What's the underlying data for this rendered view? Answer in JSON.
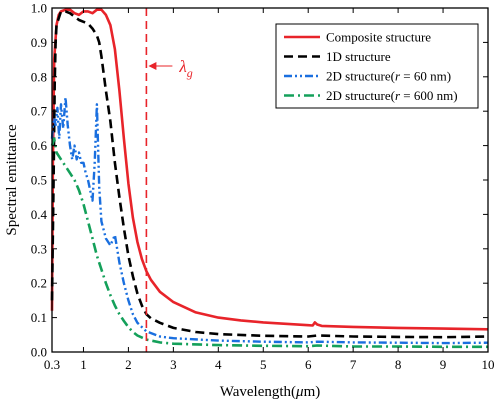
{
  "chart_data": {
    "type": "line",
    "xlabel_prefix": "Wavelength(",
    "xlabel_mu": "μ",
    "xlabel_suffix": "m)",
    "ylabel": "Spectral emittance",
    "xlim": [
      0.3,
      10
    ],
    "ylim": [
      0.0,
      1.0
    ],
    "x_ticks": [
      0.3,
      1,
      2,
      3,
      4,
      5,
      6,
      7,
      8,
      9,
      10
    ],
    "x_tick_labels": [
      "0.3",
      "1",
      "2",
      "3",
      "4",
      "5",
      "6",
      "7",
      "8",
      "9",
      "10"
    ],
    "y_ticks": [
      0.0,
      0.1,
      0.2,
      0.3,
      0.4,
      0.5,
      0.6,
      0.7,
      0.8,
      0.9,
      1.0
    ],
    "y_tick_labels": [
      "0.0",
      "0.1",
      "0.2",
      "0.3",
      "0.4",
      "0.5",
      "0.6",
      "0.7",
      "0.8",
      "0.9",
      "1.0"
    ],
    "grid": false,
    "legend_position": "top-right",
    "annotation": {
      "symbol": "λ",
      "subscript": "g",
      "x": 2.4,
      "line_color": "#e8242a"
    },
    "series": [
      {
        "name": "Composite structure",
        "color": "#e8242a",
        "dash": "solid",
        "points": [
          [
            0.3,
            0.12
          ],
          [
            0.32,
            0.55
          ],
          [
            0.35,
            0.85
          ],
          [
            0.4,
            0.95
          ],
          [
            0.45,
            0.98
          ],
          [
            0.5,
            0.99
          ],
          [
            0.6,
            0.995
          ],
          [
            0.7,
            0.995
          ],
          [
            0.8,
            0.985
          ],
          [
            0.9,
            0.98
          ],
          [
            1.0,
            0.99
          ],
          [
            1.1,
            0.99
          ],
          [
            1.2,
            0.985
          ],
          [
            1.3,
            0.995
          ],
          [
            1.4,
            0.995
          ],
          [
            1.5,
            0.98
          ],
          [
            1.6,
            0.95
          ],
          [
            1.7,
            0.88
          ],
          [
            1.8,
            0.76
          ],
          [
            1.9,
            0.62
          ],
          [
            2.0,
            0.49
          ],
          [
            2.1,
            0.39
          ],
          [
            2.2,
            0.32
          ],
          [
            2.3,
            0.27
          ],
          [
            2.4,
            0.235
          ],
          [
            2.5,
            0.21
          ],
          [
            2.7,
            0.175
          ],
          [
            3.0,
            0.145
          ],
          [
            3.5,
            0.115
          ],
          [
            4.0,
            0.1
          ],
          [
            4.5,
            0.092
          ],
          [
            5.0,
            0.086
          ],
          [
            5.5,
            0.082
          ],
          [
            6.0,
            0.078
          ],
          [
            6.1,
            0.077
          ],
          [
            6.15,
            0.086
          ],
          [
            6.2,
            0.08
          ],
          [
            6.3,
            0.076
          ],
          [
            7.0,
            0.073
          ],
          [
            8.0,
            0.07
          ],
          [
            9.0,
            0.068
          ],
          [
            10.0,
            0.066
          ]
        ]
      },
      {
        "name": "1D structure",
        "color": "#000000",
        "dash": "dashed",
        "points": [
          [
            0.3,
            0.15
          ],
          [
            0.32,
            0.35
          ],
          [
            0.34,
            0.55
          ],
          [
            0.36,
            0.78
          ],
          [
            0.38,
            0.9
          ],
          [
            0.4,
            0.95
          ],
          [
            0.45,
            0.97
          ],
          [
            0.5,
            0.99
          ],
          [
            0.6,
            0.99
          ],
          [
            0.7,
            0.985
          ],
          [
            0.8,
            0.975
          ],
          [
            0.9,
            0.965
          ],
          [
            1.0,
            0.96
          ],
          [
            1.1,
            0.955
          ],
          [
            1.2,
            0.94
          ],
          [
            1.3,
            0.92
          ],
          [
            1.35,
            0.9
          ],
          [
            1.4,
            0.86
          ],
          [
            1.5,
            0.76
          ],
          [
            1.6,
            0.67
          ],
          [
            1.7,
            0.55
          ],
          [
            1.8,
            0.45
          ],
          [
            1.9,
            0.36
          ],
          [
            2.0,
            0.28
          ],
          [
            2.1,
            0.22
          ],
          [
            2.2,
            0.17
          ],
          [
            2.3,
            0.135
          ],
          [
            2.4,
            0.11
          ],
          [
            2.5,
            0.098
          ],
          [
            2.7,
            0.085
          ],
          [
            3.0,
            0.07
          ],
          [
            3.5,
            0.058
          ],
          [
            4.0,
            0.052
          ],
          [
            5.0,
            0.047
          ],
          [
            6.0,
            0.045
          ],
          [
            6.2,
            0.048
          ],
          [
            7.0,
            0.045
          ],
          [
            8.0,
            0.044
          ],
          [
            9.0,
            0.043
          ],
          [
            10.0,
            0.045
          ]
        ]
      },
      {
        "name": "2D structure(r = 60 nm)",
        "name_prefix": "2D structure(",
        "name_italic": "r",
        "name_suffix": " = 60 nm)",
        "color": "#1a6fdf",
        "dash": "dashdotdot",
        "points": [
          [
            0.3,
            0.62
          ],
          [
            0.32,
            0.66
          ],
          [
            0.35,
            0.68
          ],
          [
            0.38,
            0.66
          ],
          [
            0.42,
            0.71
          ],
          [
            0.46,
            0.62
          ],
          [
            0.5,
            0.72
          ],
          [
            0.55,
            0.65
          ],
          [
            0.6,
            0.74
          ],
          [
            0.65,
            0.66
          ],
          [
            0.7,
            0.6
          ],
          [
            0.75,
            0.56
          ],
          [
            0.8,
            0.6
          ],
          [
            0.85,
            0.56
          ],
          [
            0.9,
            0.58
          ],
          [
            0.95,
            0.55
          ],
          [
            1.0,
            0.55
          ],
          [
            1.05,
            0.52
          ],
          [
            1.1,
            0.5
          ],
          [
            1.15,
            0.47
          ],
          [
            1.2,
            0.44
          ],
          [
            1.25,
            0.55
          ],
          [
            1.3,
            0.72
          ],
          [
            1.35,
            0.48
          ],
          [
            1.4,
            0.38
          ],
          [
            1.5,
            0.33
          ],
          [
            1.6,
            0.31
          ],
          [
            1.7,
            0.34
          ],
          [
            1.8,
            0.26
          ],
          [
            1.9,
            0.2
          ],
          [
            2.0,
            0.15
          ],
          [
            2.1,
            0.11
          ],
          [
            2.2,
            0.085
          ],
          [
            2.4,
            0.06
          ],
          [
            2.7,
            0.045
          ],
          [
            3.0,
            0.04
          ],
          [
            4.0,
            0.033
          ],
          [
            5.0,
            0.03
          ],
          [
            6.0,
            0.028
          ],
          [
            6.2,
            0.03
          ],
          [
            7.0,
            0.028
          ],
          [
            8.0,
            0.027
          ],
          [
            9.0,
            0.026
          ],
          [
            10.0,
            0.027
          ]
        ]
      },
      {
        "name": "2D structure(r = 600 nm)",
        "name_prefix": "2D structure(",
        "name_italic": "r",
        "name_suffix": " = 600 nm)",
        "color": "#14a05a",
        "dash": "dashdot",
        "points": [
          [
            0.3,
            0.6
          ],
          [
            0.35,
            0.62
          ],
          [
            0.4,
            0.58
          ],
          [
            0.5,
            0.56
          ],
          [
            0.6,
            0.54
          ],
          [
            0.7,
            0.52
          ],
          [
            0.8,
            0.5
          ],
          [
            0.9,
            0.47
          ],
          [
            1.0,
            0.43
          ],
          [
            1.1,
            0.38
          ],
          [
            1.2,
            0.33
          ],
          [
            1.3,
            0.28
          ],
          [
            1.4,
            0.24
          ],
          [
            1.5,
            0.2
          ],
          [
            1.6,
            0.165
          ],
          [
            1.7,
            0.135
          ],
          [
            1.8,
            0.11
          ],
          [
            1.9,
            0.09
          ],
          [
            2.0,
            0.072
          ],
          [
            2.1,
            0.058
          ],
          [
            2.2,
            0.048
          ],
          [
            2.4,
            0.036
          ],
          [
            2.7,
            0.028
          ],
          [
            3.0,
            0.024
          ],
          [
            4.0,
            0.02
          ],
          [
            5.0,
            0.018
          ],
          [
            6.0,
            0.017
          ],
          [
            6.2,
            0.019
          ],
          [
            7.0,
            0.016
          ],
          [
            8.0,
            0.016
          ],
          [
            9.0,
            0.015
          ],
          [
            10.0,
            0.015
          ]
        ]
      }
    ]
  }
}
